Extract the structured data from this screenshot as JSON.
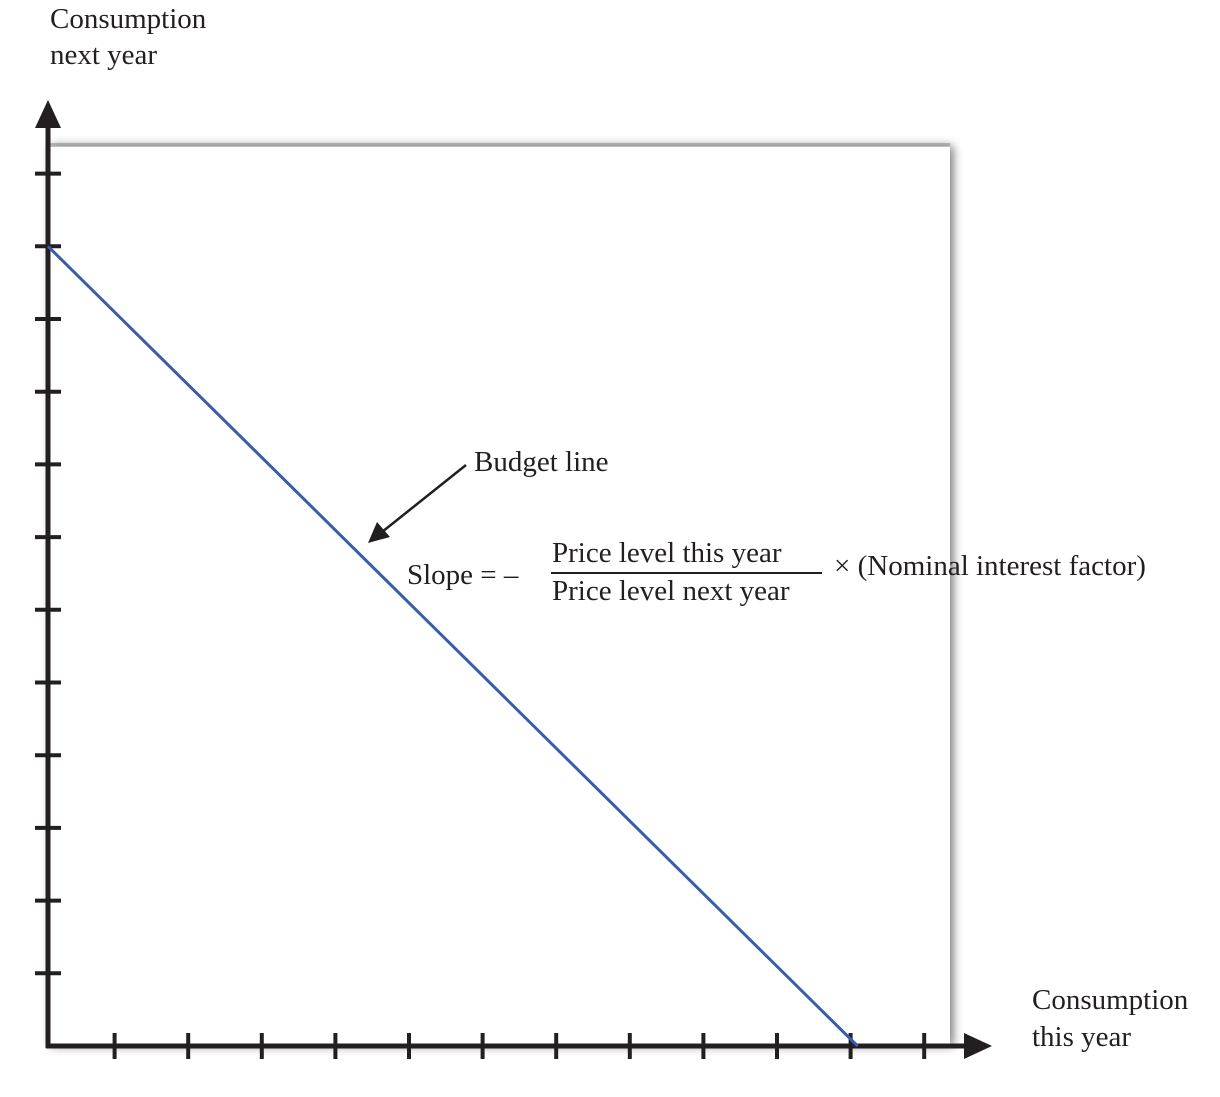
{
  "chart_data": {
    "type": "line",
    "title": "",
    "ylabel": [
      "Consumption",
      "next year"
    ],
    "xlabel": [
      "Consumption",
      "this year"
    ],
    "x_ticks": 12,
    "y_ticks": 12,
    "xlim": [
      0,
      12
    ],
    "ylim": [
      0,
      12
    ],
    "grid": false,
    "series": [
      {
        "name": "Budget line",
        "x": [
          0,
          11
        ],
        "y": [
          11,
          0
        ]
      }
    ],
    "annotations": {
      "arrow_label": "Budget line",
      "slope_prefix": "Slope = –",
      "slope_numerator": "Price level this year",
      "slope_denominator": "Price level next year",
      "slope_suffix": "× (Nominal interest factor)"
    },
    "colors": {
      "line": "#3a5da8",
      "axis": "#231f20",
      "panel_shadow": "#888888"
    }
  }
}
